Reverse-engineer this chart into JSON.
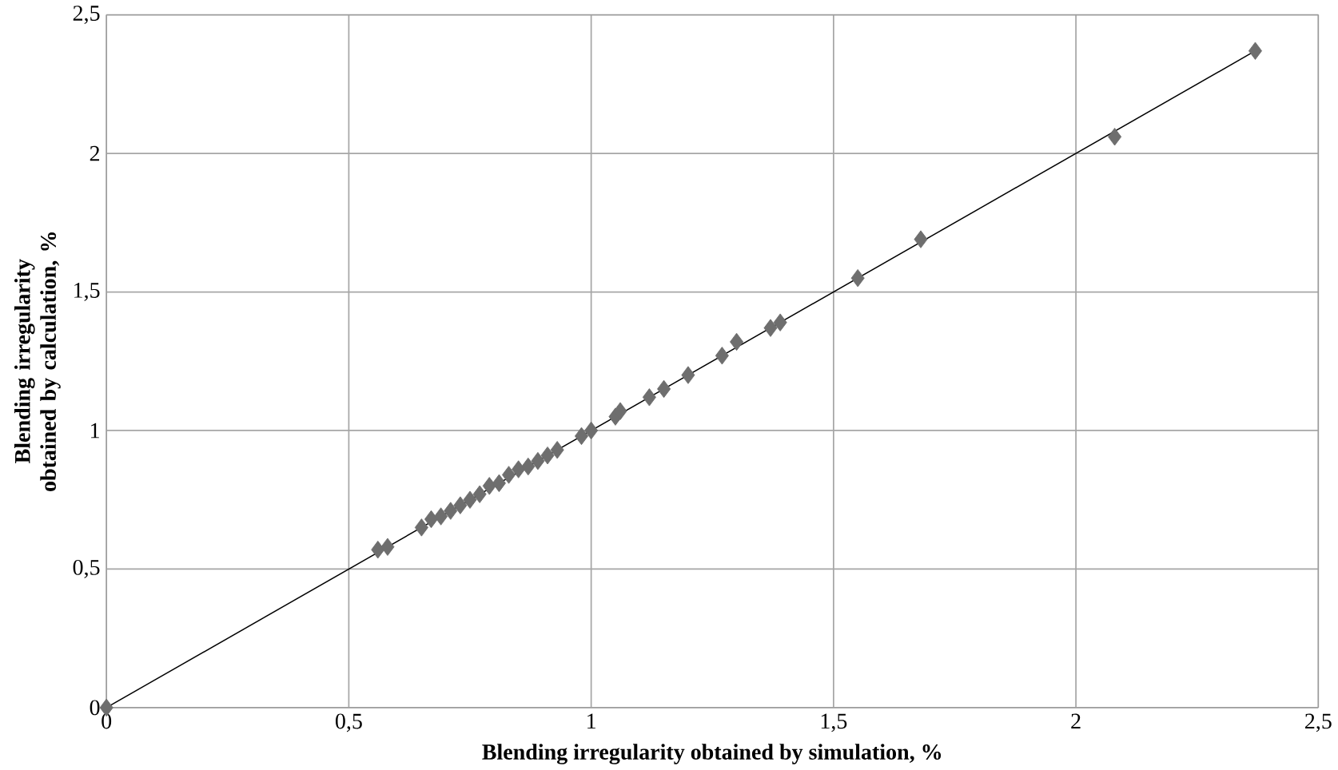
{
  "chart_data": {
    "type": "scatter",
    "xlabel": "Blending irregularity  obtained by simulation, %",
    "ylabel": "Blending irregularity  obtained by calculation, %",
    "xlim": [
      0,
      2.5
    ],
    "ylim": [
      0,
      2.5
    ],
    "xticks": [
      {
        "value": 0,
        "label": "0"
      },
      {
        "value": 0.5,
        "label": "0,5"
      },
      {
        "value": 1,
        "label": "1"
      },
      {
        "value": 1.5,
        "label": "1,5"
      },
      {
        "value": 2,
        "label": "2"
      },
      {
        "value": 2.5,
        "label": "2,5"
      }
    ],
    "yticks": [
      {
        "value": 0,
        "label": "0"
      },
      {
        "value": 0.5,
        "label": "0,5"
      },
      {
        "value": 1,
        "label": "1"
      },
      {
        "value": 1.5,
        "label": "1,5"
      },
      {
        "value": 2,
        "label": "2"
      },
      {
        "value": 2.5,
        "label": "2,5"
      }
    ],
    "grid": true,
    "marker": "diamond",
    "series": [
      {
        "color": "#6e6e6e",
        "x": [
          0,
          0.56,
          0.58,
          0.65,
          0.67,
          0.69,
          0.71,
          0.73,
          0.75,
          0.77,
          0.79,
          0.81,
          0.83,
          0.85,
          0.87,
          0.89,
          0.91,
          0.93,
          0.98,
          1.0,
          1.05,
          1.06,
          1.12,
          1.15,
          1.2,
          1.27,
          1.3,
          1.37,
          1.39,
          1.55,
          1.68,
          2.08,
          2.37
        ],
        "values": [
          0,
          0.57,
          0.58,
          0.65,
          0.68,
          0.69,
          0.71,
          0.73,
          0.75,
          0.77,
          0.8,
          0.81,
          0.84,
          0.86,
          0.87,
          0.89,
          0.91,
          0.93,
          0.98,
          1.0,
          1.05,
          1.07,
          1.12,
          1.15,
          1.2,
          1.27,
          1.32,
          1.37,
          1.39,
          1.55,
          1.69,
          2.06,
          2.37
        ]
      },
      {
        "type": "line",
        "color": "#000000",
        "marker": "none",
        "x": [
          0,
          2.37
        ],
        "values": [
          0,
          2.37
        ]
      }
    ]
  }
}
